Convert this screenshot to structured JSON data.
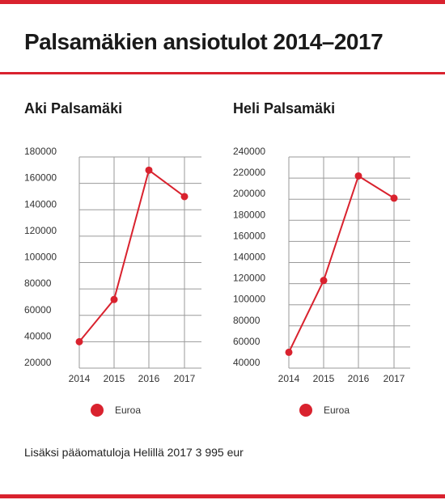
{
  "page": {
    "title": "Palsamäkien ansiotulot 2014–2017",
    "footnote": "Lisäksi pääomatuloja Helillä 2017 3 995 eur"
  },
  "colors": {
    "accent": "#d9222e",
    "grid": "#9a9a9a"
  },
  "chart_data": [
    {
      "type": "line",
      "title": "Aki Palsamäki",
      "x": [
        "2014",
        "2015",
        "2016",
        "2017"
      ],
      "series": [
        {
          "name": "Euroa",
          "values": [
            40000,
            72000,
            170000,
            150000
          ]
        }
      ],
      "yticks": [
        20000,
        40000,
        60000,
        80000,
        100000,
        120000,
        140000,
        160000,
        180000
      ],
      "ylim": [
        20000,
        180000
      ],
      "grid": true,
      "legend": "bottom"
    },
    {
      "type": "line",
      "title": "Heli Palsamäki",
      "x": [
        "2014",
        "2015",
        "2016",
        "2017"
      ],
      "series": [
        {
          "name": "Euroa",
          "values": [
            55000,
            123000,
            222000,
            201000
          ]
        }
      ],
      "yticks": [
        40000,
        60000,
        80000,
        100000,
        120000,
        140000,
        160000,
        180000,
        200000,
        220000,
        240000
      ],
      "ylim": [
        40000,
        240000
      ],
      "grid": true,
      "legend": "bottom"
    }
  ]
}
